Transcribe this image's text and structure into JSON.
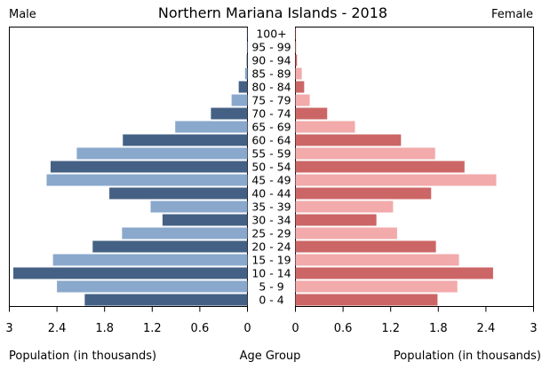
{
  "chart_data": {
    "type": "bar",
    "orientation": "horizontal",
    "layout": "population-pyramid",
    "title": "Northern Mariana Islands - 2018",
    "left_label": "Male",
    "right_label": "Female",
    "xlabel_left": "Population (in thousands)",
    "xlabel_center": "Age Group",
    "xlabel_right": "Population (in thousands)",
    "xlim": [
      0,
      3
    ],
    "xticks": [
      0,
      0.6,
      1.2,
      1.8,
      2.4,
      3
    ],
    "grid": false,
    "categories": [
      "0 - 4",
      "5 - 9",
      "10 - 14",
      "15 - 19",
      "20 - 24",
      "25 - 29",
      "30 - 34",
      "35 - 39",
      "40 - 44",
      "45 - 49",
      "50 - 54",
      "55 - 59",
      "60 - 64",
      "65 - 69",
      "70 - 74",
      "75 - 79",
      "80 - 84",
      "85 - 89",
      "90 - 94",
      "95 - 99",
      "100+"
    ],
    "series": [
      {
        "name": "Male",
        "side": "left",
        "values": [
          2.05,
          2.4,
          2.95,
          2.45,
          1.95,
          1.58,
          1.07,
          1.22,
          1.74,
          2.53,
          2.48,
          2.15,
          1.57,
          0.91,
          0.46,
          0.2,
          0.11,
          0.03,
          0.01,
          0.005,
          0.005
        ],
        "colors": [
          "#446185",
          "#8aa8cc"
        ]
      },
      {
        "name": "Female",
        "side": "right",
        "values": [
          1.79,
          2.04,
          2.49,
          2.06,
          1.77,
          1.28,
          1.02,
          1.23,
          1.71,
          2.53,
          2.13,
          1.76,
          1.33,
          0.75,
          0.4,
          0.18,
          0.11,
          0.08,
          0.02,
          0.01,
          0.005
        ],
        "colors": [
          "#cc6666",
          "#f2aaaa"
        ]
      }
    ]
  }
}
